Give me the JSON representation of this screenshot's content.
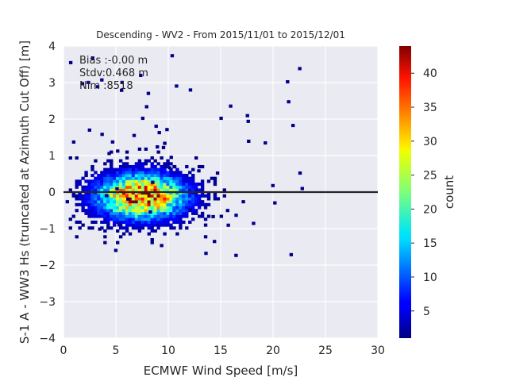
{
  "chart_data": {
    "type": "heatmap",
    "title": "Descending - WV2 - From 2015/11/01 to 2015/12/01",
    "xlabel": "ECMWF Wind Speed [m/s]",
    "ylabel": "S-1 A - WW3 Hs (truncated at Azimuth Cut Off) [m]",
    "xlim": [
      0,
      30
    ],
    "ylim": [
      -4,
      4
    ],
    "xticks": [
      "0",
      "5",
      "10",
      "15",
      "20",
      "25",
      "30"
    ],
    "yticks": [
      "−4",
      "−3",
      "−2",
      "−1",
      "0",
      "1",
      "2",
      "3",
      "4"
    ],
    "grid": true,
    "reference_line_y": 0,
    "stats": {
      "bias": "Bias :-0.00 m",
      "stdv": "Stdv:0.468 m",
      "nim": "Nim :8518"
    },
    "colorbar": {
      "label": "count",
      "range": [
        1,
        44
      ],
      "ticks": [
        "5",
        "10",
        "15",
        "20",
        "25",
        "30",
        "35",
        "40"
      ],
      "colormap": "jet"
    },
    "density": {
      "peak_x": 7.3,
      "peak_y": -0.15,
      "peak_count": 44,
      "x_spread": 2.9,
      "y_spread": 0.42,
      "x_range": [
        0.2,
        18
      ],
      "y_range": [
        -1.9,
        1.8
      ]
    }
  }
}
